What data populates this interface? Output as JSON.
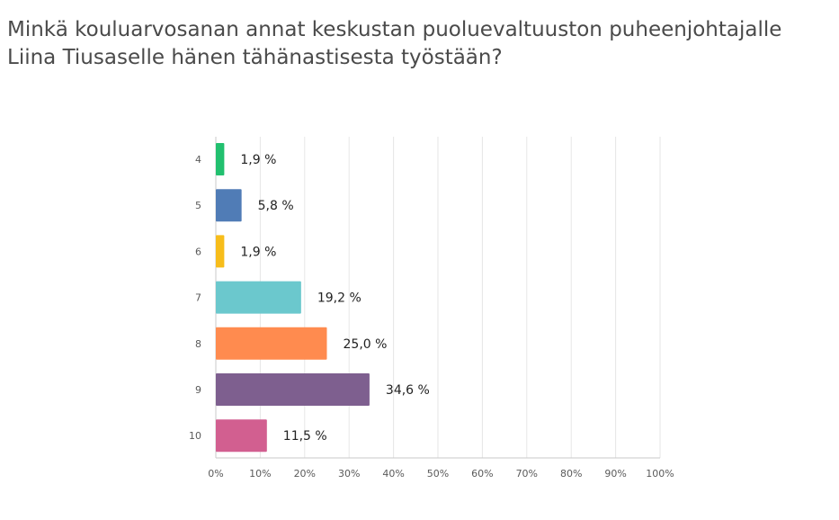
{
  "question": {
    "title": "Minkä kouluarvosanan annat keskustan puoluevaltuuston puheenjohtajalle Liina Tiusaselle hänen tähänastisesta työstään?"
  },
  "chart_data": {
    "type": "bar",
    "orientation": "horizontal",
    "categories": [
      "4",
      "5",
      "6",
      "7",
      "8",
      "9",
      "10"
    ],
    "values": [
      1.9,
      5.8,
      1.9,
      19.2,
      25.0,
      34.6,
      11.5
    ],
    "value_labels": [
      "1,9 %",
      "5,8 %",
      "1,9 %",
      "19,2 %",
      "25,0 %",
      "34,6 %",
      "11,5 %"
    ],
    "colors": [
      "#22c06f",
      "#507cb6",
      "#f7bd1b",
      "#6bc8cd",
      "#ff8b4f",
      "#7e5f8f",
      "#d25f90"
    ],
    "x_ticks": [
      "0%",
      "10%",
      "20%",
      "30%",
      "40%",
      "50%",
      "60%",
      "70%",
      "80%",
      "90%",
      "100%"
    ],
    "xlim": [
      0,
      100
    ],
    "grid": true,
    "title": "",
    "xlabel": "",
    "ylabel": ""
  }
}
